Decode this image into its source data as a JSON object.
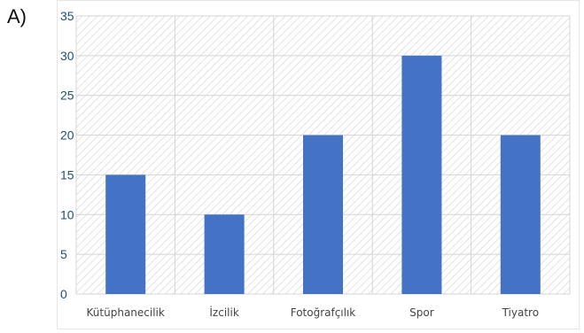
{
  "option_label": "A)",
  "chart_data": {
    "type": "bar",
    "title": "",
    "xlabel": "",
    "ylabel": "",
    "categories": [
      "Kütüphanecilik",
      "İzcilik",
      "Fotoğrafçılık",
      "Spor",
      "Tiyatro"
    ],
    "values": [
      15,
      10,
      20,
      30,
      20
    ],
    "ylim": [
      0,
      35
    ],
    "yticks": [
      0,
      5,
      10,
      15,
      20,
      25,
      30,
      35
    ],
    "grid": true,
    "legend": "none",
    "colors": {
      "bar": "#4472c4",
      "grid": "#d4d4d4",
      "hatch": "#e3e3e3",
      "tick_label": "#1f4e79",
      "category_label": "#444444"
    }
  }
}
